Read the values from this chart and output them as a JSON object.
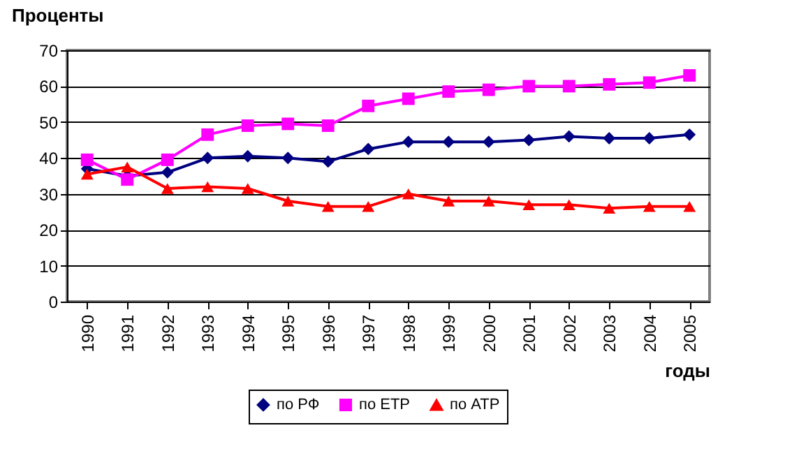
{
  "chart_data": {
    "type": "line",
    "ylabel": "Проценты",
    "xlabel": "годы",
    "categories": [
      "1990",
      "1991",
      "1992",
      "1993",
      "1994",
      "1995",
      "1996",
      "1997",
      "1998",
      "1999",
      "2000",
      "2001",
      "2002",
      "2003",
      "2004",
      "2005"
    ],
    "series": [
      {
        "name": "по РФ",
        "color": "#000080",
        "marker": "diamond",
        "values": [
          37,
          35,
          36,
          40,
          40.5,
          40,
          39,
          42.5,
          44.5,
          44.5,
          44.5,
          45,
          46,
          45.5,
          45.5,
          46.5
        ]
      },
      {
        "name": "по ЕТР",
        "color": "#ff00ff",
        "marker": "square",
        "values": [
          39.5,
          34,
          39.5,
          46.5,
          49,
          49.5,
          49,
          54.5,
          56.5,
          58.5,
          59,
          60,
          60,
          60.5,
          61,
          63
        ]
      },
      {
        "name": "по АТР",
        "color": "#ff0000",
        "marker": "triangle",
        "values": [
          35.5,
          37.5,
          31.5,
          32,
          31.5,
          28,
          26.5,
          26.5,
          30,
          28,
          28,
          27,
          27,
          26,
          26.5,
          26.5
        ]
      }
    ],
    "ylim": [
      0,
      70
    ],
    "yticks": [
      0,
      10,
      20,
      30,
      40,
      50,
      60,
      70
    ],
    "grid": "y",
    "legend": "bottom"
  }
}
